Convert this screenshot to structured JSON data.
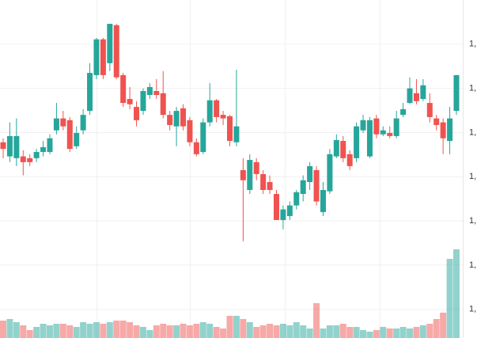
{
  "chart_data": {
    "type": "candlestick",
    "up_color": "#26a69a",
    "down_color": "#ef5350",
    "grid": true,
    "ylim": [
      935,
      1700
    ],
    "yticks": [
      {
        "value": 1600,
        "label": "1,"
      },
      {
        "value": 1500,
        "label": "1,"
      },
      {
        "value": 1400,
        "label": "1,"
      },
      {
        "value": 1300,
        "label": "1,"
      },
      {
        "value": 1200,
        "label": "1,"
      },
      {
        "value": 1100,
        "label": "1,"
      },
      {
        "value": 1000,
        "label": "1,"
      }
    ],
    "open": [
      1378,
      1346,
      1342,
      1346,
      1342,
      1342,
      1356,
      1356,
      1405,
      1432,
      1428,
      1369,
      1405,
      1449,
      1530,
      1611,
      1557,
      1643,
      1530,
      1476,
      1458,
      1449,
      1485,
      1494,
      1489,
      1440,
      1414,
      1455,
      1428,
      1378,
      1356,
      1423,
      1473,
      1440,
      1437,
      1378,
      1315,
      1270,
      1333,
      1306,
      1288,
      1261,
      1202,
      1211,
      1235,
      1261,
      1288,
      1315,
      1220,
      1267,
      1346,
      1381,
      1351,
      1342,
      1405,
      1346,
      1432,
      1396,
      1399,
      1392,
      1440,
      1467,
      1489,
      1476,
      1467,
      1432,
      1423,
      1381,
      1449
    ],
    "high": [
      1387,
      1423,
      1432,
      1360,
      1351,
      1363,
      1381,
      1396,
      1467,
      1449,
      1435,
      1414,
      1453,
      1557,
      1614,
      1614,
      1646,
      1646,
      1535,
      1503,
      1471,
      1500,
      1512,
      1521,
      1539,
      1449,
      1458,
      1464,
      1435,
      1387,
      1432,
      1512,
      1476,
      1449,
      1440,
      1542,
      1342,
      1351,
      1342,
      1315,
      1303,
      1270,
      1235,
      1244,
      1270,
      1303,
      1333,
      1324,
      1288,
      1363,
      1396,
      1392,
      1360,
      1423,
      1440,
      1435,
      1440,
      1414,
      1414,
      1449,
      1467,
      1525,
      1521,
      1521,
      1489,
      1440,
      1432,
      1458,
      1530
    ],
    "low": [
      1342,
      1333,
      1324,
      1303,
      1324,
      1333,
      1346,
      1351,
      1396,
      1405,
      1356,
      1363,
      1396,
      1440,
      1521,
      1521,
      1539,
      1521,
      1458,
      1453,
      1414,
      1440,
      1476,
      1476,
      1432,
      1405,
      1369,
      1405,
      1369,
      1346,
      1351,
      1414,
      1423,
      1417,
      1369,
      1369,
      1154,
      1261,
      1292,
      1261,
      1261,
      1202,
      1181,
      1202,
      1226,
      1244,
      1270,
      1235,
      1211,
      1261,
      1342,
      1333,
      1315,
      1333,
      1399,
      1342,
      1387,
      1392,
      1387,
      1387,
      1435,
      1464,
      1464,
      1471,
      1423,
      1405,
      1351,
      1351,
      1440
    ],
    "close": [
      1363,
      1392,
      1392,
      1333,
      1333,
      1356,
      1367,
      1387,
      1432,
      1414,
      1363,
      1399,
      1440,
      1535,
      1611,
      1530,
      1646,
      1525,
      1467,
      1464,
      1428,
      1494,
      1503,
      1485,
      1440,
      1417,
      1449,
      1414,
      1378,
      1351,
      1423,
      1473,
      1435,
      1432,
      1381,
      1414,
      1292,
      1338,
      1306,
      1270,
      1270,
      1202,
      1226,
      1235,
      1265,
      1292,
      1324,
      1244,
      1270,
      1351,
      1383,
      1342,
      1324,
      1414,
      1428,
      1428,
      1396,
      1405,
      1392,
      1432,
      1453,
      1500,
      1471,
      1507,
      1435,
      1417,
      1387,
      1432,
      1530
    ],
    "volume_lim": [
      0,
      1200
    ],
    "volume": [
      220,
      240,
      200,
      160,
      100,
      140,
      180,
      160,
      180,
      180,
      160,
      140,
      200,
      180,
      200,
      180,
      200,
      220,
      220,
      200,
      160,
      140,
      100,
      160,
      180,
      160,
      160,
      180,
      160,
      180,
      200,
      180,
      140,
      120,
      280,
      280,
      240,
      200,
      140,
      160,
      180,
      160,
      180,
      160,
      200,
      160,
      120,
      440,
      120,
      160,
      160,
      180,
      140,
      140,
      100,
      80,
      100,
      140,
      120,
      120,
      140,
      120,
      140,
      160,
      180,
      240,
      320,
      1000,
      1120
    ]
  }
}
